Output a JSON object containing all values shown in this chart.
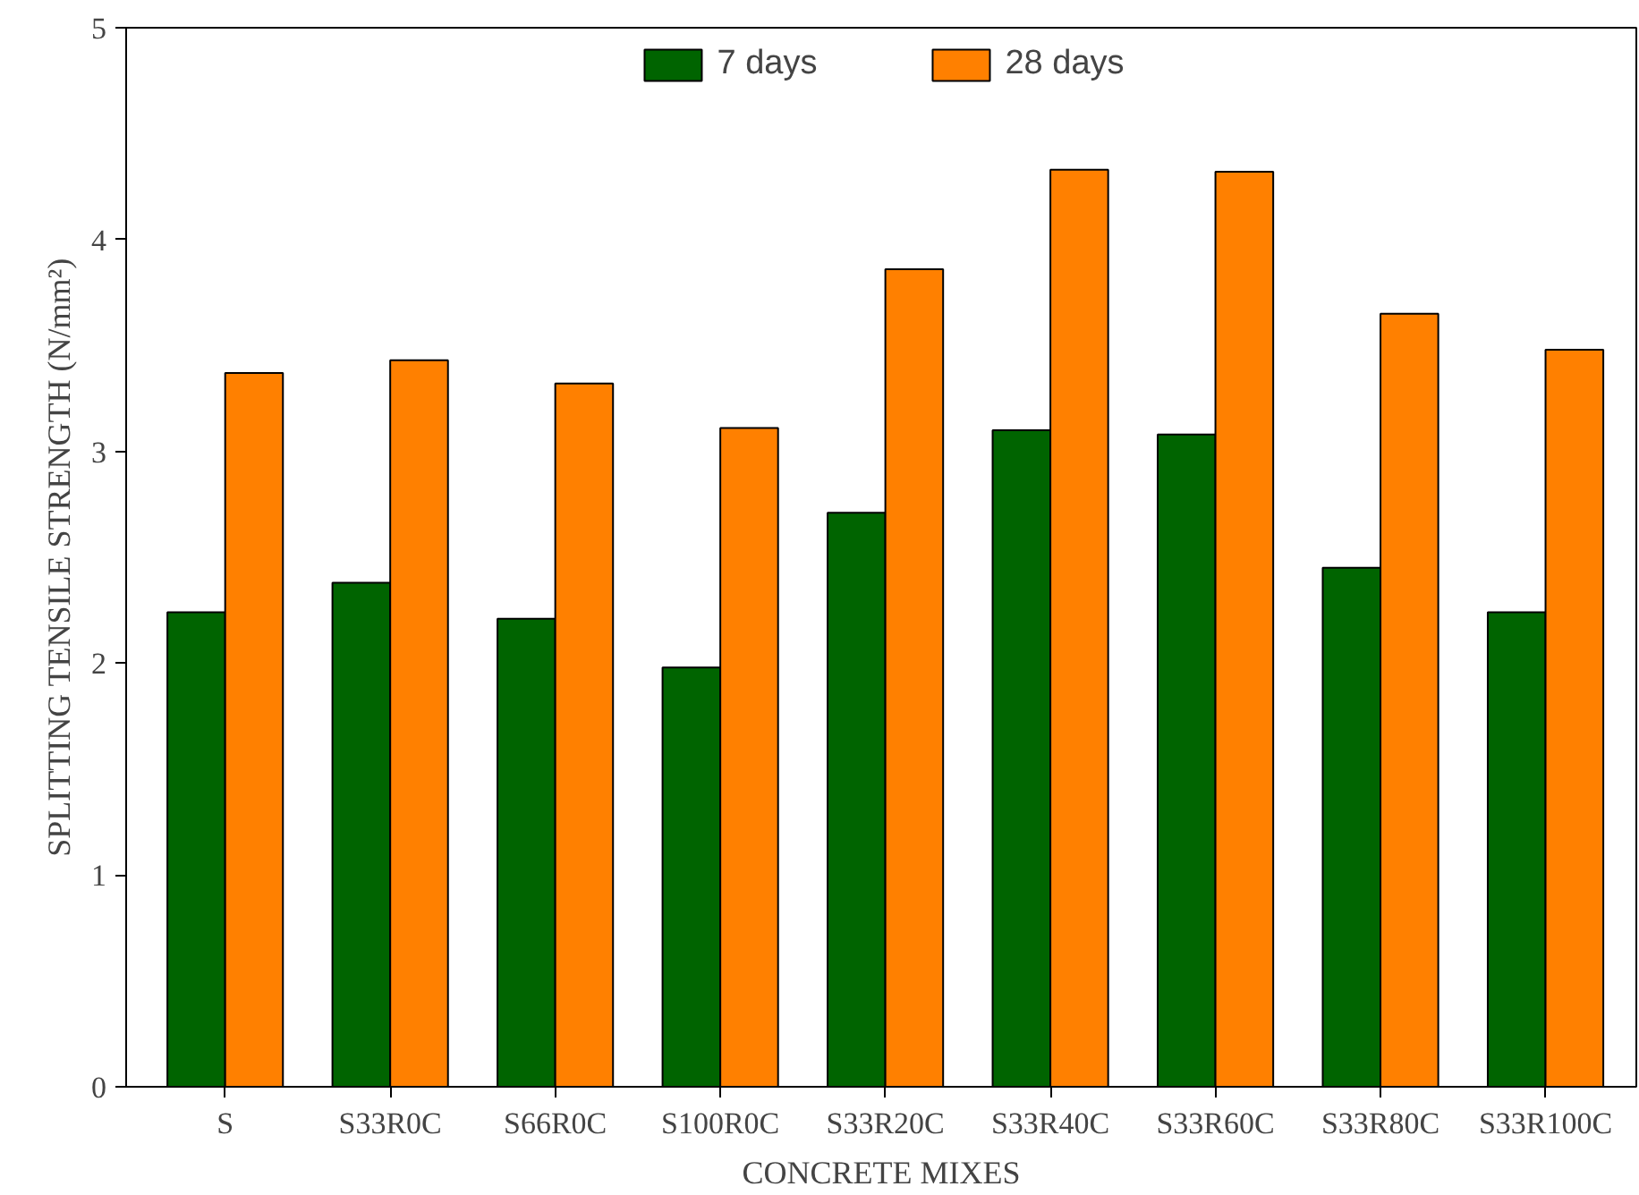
{
  "chart_data": {
    "type": "bar",
    "xlabel": "CONCRETE MIXES",
    "ylabel": "SPLITTING TENSILE STRENGTH (N/mm²)",
    "categories": [
      "S",
      "S33R0C",
      "S66R0C",
      "S100R0C",
      "S33R20C",
      "S33R40C",
      "S33R60C",
      "S33R80C",
      "S33R100C"
    ],
    "series": [
      {
        "name": "7 days",
        "color": "#006400",
        "values": [
          2.24,
          2.38,
          2.21,
          1.98,
          2.71,
          3.1,
          3.08,
          2.45,
          2.24
        ]
      },
      {
        "name": "28 days",
        "color": "#ff8000",
        "values": [
          3.37,
          3.43,
          3.32,
          3.11,
          3.86,
          4.33,
          4.32,
          3.65,
          3.48
        ]
      }
    ],
    "ylim": [
      0,
      5
    ],
    "yticks": [
      0,
      1,
      2,
      3,
      4,
      5
    ],
    "grid": false,
    "legend": "top"
  }
}
